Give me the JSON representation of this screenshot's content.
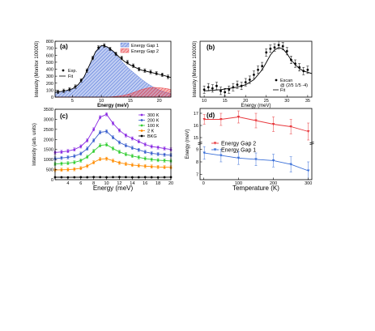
{
  "chart_data": [
    {
      "panel": "(a)",
      "type": "line",
      "xlabel": "Energy (meV)",
      "ylabel": "Intensity (Monitor 100000)",
      "xlim": [
        2,
        22
      ],
      "ylim": [
        0,
        800
      ],
      "xticks": [
        5,
        10,
        15,
        20
      ],
      "yticks": [
        0,
        100,
        200,
        300,
        400,
        500,
        600,
        700,
        800
      ],
      "legend_left": [
        "Exp.",
        "Fit"
      ],
      "legend_right": [
        "Energy Gap 1",
        "Energy Gap 2"
      ],
      "series": [
        {
          "name": "Exp.",
          "x": [
            2.5,
            3.5,
            4.5,
            5.5,
            6.5,
            7.5,
            8.5,
            9.5,
            10.5,
            11.5,
            12.5,
            13.5,
            14.5,
            15.5,
            16.5,
            17.5,
            18.5,
            19.5,
            20.5,
            21.5
          ],
          "values": [
            75,
            90,
            110,
            150,
            240,
            380,
            560,
            710,
            740,
            690,
            620,
            560,
            500,
            450,
            400,
            380,
            360,
            340,
            320,
            290
          ]
        },
        {
          "name": "Fit",
          "x": [
            2,
            3,
            4,
            5,
            6,
            7,
            8,
            9,
            10,
            11,
            12,
            13,
            14,
            15,
            16,
            17,
            18,
            19,
            20,
            21,
            22
          ],
          "values": [
            70,
            80,
            95,
            120,
            180,
            290,
            470,
            650,
            740,
            720,
            660,
            580,
            510,
            460,
            420,
            385,
            365,
            345,
            325,
            305,
            280
          ]
        },
        {
          "name": "Energy Gap 1",
          "x": [
            2,
            3,
            4,
            5,
            6,
            7,
            8,
            9,
            10,
            11,
            12,
            13,
            14,
            15,
            16,
            17,
            18,
            19,
            20,
            21,
            22
          ],
          "values": [
            70,
            80,
            95,
            120,
            180,
            290,
            470,
            650,
            740,
            720,
            650,
            560,
            470,
            390,
            320,
            250,
            190,
            140,
            100,
            70,
            50
          ]
        },
        {
          "name": "Energy Gap 2",
          "x": [
            2,
            4,
            6,
            8,
            10,
            11,
            12,
            13,
            14,
            15,
            16,
            17,
            18,
            19,
            20,
            21,
            22
          ],
          "values": [
            0,
            0,
            0,
            0,
            0,
            2,
            6,
            14,
            28,
            50,
            80,
            110,
            130,
            140,
            135,
            125,
            110
          ]
        }
      ]
    },
    {
      "panel": "(b)",
      "type": "scatter",
      "xlabel": "Energy (meV)",
      "ylabel": "Intensity (Monitor 100000)",
      "xlim": [
        9,
        36
      ],
      "ylim": [
        0,
        45
      ],
      "xticks": [
        10,
        15,
        20,
        25,
        30,
        35
      ],
      "legend": [
        "Escan",
        "@ (2/5 1/5 -4)",
        "Fit"
      ],
      "series": [
        {
          "name": "Escan",
          "x": [
            10,
            11,
            12,
            13,
            14,
            15,
            16,
            17,
            18,
            19,
            20,
            21,
            22,
            23,
            24,
            25,
            26,
            27,
            28,
            29,
            30,
            31,
            32,
            33,
            34,
            35
          ],
          "values": [
            6,
            8,
            7,
            9,
            5,
            4,
            6,
            8,
            10,
            9,
            12,
            14,
            18,
            22,
            25,
            36,
            39,
            40,
            42,
            41,
            37,
            30,
            27,
            24,
            21,
            22
          ]
        },
        {
          "name": "Fit",
          "x": [
            10,
            12,
            14,
            16,
            18,
            20,
            22,
            24,
            25,
            26,
            27,
            28,
            29,
            30,
            31,
            32,
            33,
            34,
            35,
            36
          ],
          "values": [
            5,
            5.5,
            6,
            7,
            8,
            10,
            14,
            22,
            28,
            34,
            38,
            40,
            39,
            35,
            30,
            26,
            23,
            21,
            20,
            19
          ]
        }
      ]
    },
    {
      "panel": "(c)",
      "type": "line",
      "xlabel": "Energy (meV)",
      "ylabel": "Intensity (arb. units)",
      "xlim": [
        2,
        20
      ],
      "ylim": [
        0,
        3500
      ],
      "xticks": [
        4,
        6,
        8,
        10,
        12,
        14,
        16,
        18,
        20
      ],
      "yticks": [
        0,
        500,
        1000,
        1500,
        2000,
        2500,
        3000,
        3500
      ],
      "x": [
        2,
        3,
        4,
        5,
        6,
        7,
        8,
        9,
        10,
        11,
        12,
        13,
        14,
        15,
        16,
        17,
        18,
        19,
        20
      ],
      "series": [
        {
          "name": "300 K",
          "color": "#8a2be2",
          "values": [
            1350,
            1380,
            1420,
            1500,
            1650,
            1950,
            2500,
            3100,
            3250,
            2800,
            2450,
            2200,
            2050,
            1900,
            1750,
            1650,
            1600,
            1550,
            1500
          ]
        },
        {
          "name": "200 K",
          "color": "#3a5fcd",
          "values": [
            1050,
            1080,
            1110,
            1170,
            1290,
            1540,
            1950,
            2350,
            2400,
            2100,
            1850,
            1700,
            1580,
            1480,
            1380,
            1310,
            1270,
            1240,
            1220
          ]
        },
        {
          "name": "100 K",
          "color": "#32cd32",
          "values": [
            780,
            800,
            820,
            860,
            950,
            1130,
            1420,
            1700,
            1740,
            1550,
            1380,
            1260,
            1180,
            1110,
            1050,
            1000,
            970,
            950,
            930
          ]
        },
        {
          "name": "2 K",
          "color": "#ff8c00",
          "values": [
            480,
            490,
            500,
            520,
            570,
            680,
            860,
            1020,
            1040,
            940,
            840,
            780,
            730,
            700,
            670,
            650,
            630,
            620,
            610
          ]
        },
        {
          "name": "BKG",
          "color": "#000000",
          "values": [
            120,
            120,
            115,
            120,
            125,
            120,
            130,
            125,
            120,
            125,
            130,
            125,
            120,
            120,
            125,
            120,
            115,
            120,
            125
          ]
        }
      ]
    },
    {
      "panel": "(d)",
      "type": "line",
      "xlabel": "Temperature (K)",
      "ylabel": "Energy (meV)",
      "xlim": [
        -10,
        310
      ],
      "xticks": [
        0,
        100,
        200,
        300
      ],
      "yticks_upper": [
        15,
        16,
        17
      ],
      "yticks_lower": [
        7,
        8,
        9
      ],
      "axis_break": true,
      "series": [
        {
          "name": "Energy Gap 2",
          "color": "#e8383d",
          "x": [
            2,
            50,
            100,
            150,
            200,
            250,
            300
          ],
          "values": [
            16.5,
            16.5,
            16.7,
            16.4,
            16.1,
            15.9,
            15.5
          ],
          "err": [
            0.4,
            0.5,
            0.5,
            0.6,
            0.6,
            0.6,
            0.7
          ]
        },
        {
          "name": "Energy Gap 1",
          "color": "#3a6fd8",
          "x": [
            2,
            50,
            100,
            150,
            200,
            250,
            300
          ],
          "values": [
            8.7,
            8.5,
            8.3,
            8.2,
            8.1,
            7.8,
            7.3
          ],
          "err": [
            0.5,
            0.5,
            0.5,
            0.5,
            0.5,
            0.6,
            0.7
          ]
        }
      ]
    }
  ]
}
